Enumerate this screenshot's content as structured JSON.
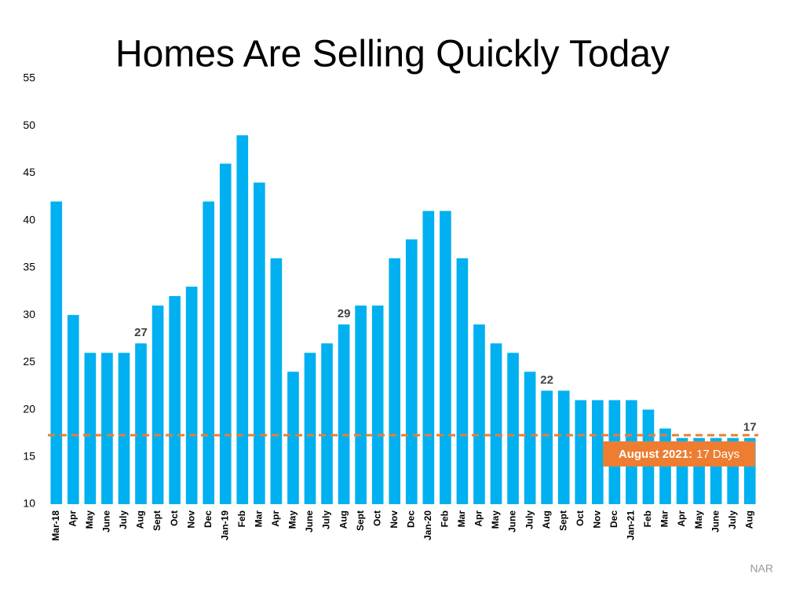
{
  "chart_data": {
    "type": "bar",
    "title": "Homes Are Selling Quickly Today",
    "categories": [
      "Mar-18",
      "Apr",
      "May",
      "June",
      "July",
      "Aug",
      "Sept",
      "Oct",
      "Nov",
      "Dec",
      "Jan-19",
      "Feb",
      "Mar",
      "Apr",
      "May",
      "June",
      "July",
      "Aug",
      "Sept",
      "Oct",
      "Nov",
      "Dec",
      "Jan-20",
      "Feb",
      "Mar",
      "Apr",
      "May",
      "June",
      "July",
      "Aug",
      "Sept",
      "Oct",
      "Nov",
      "Dec",
      "Jan-21",
      "Feb",
      "Mar",
      "Apr",
      "May",
      "June",
      "July",
      "Aug"
    ],
    "values": [
      42,
      30,
      26,
      26,
      26,
      27,
      31,
      32,
      33,
      42,
      46,
      49,
      44,
      36,
      24,
      26,
      27,
      29,
      31,
      31,
      36,
      38,
      41,
      41,
      36,
      29,
      27,
      26,
      24,
      22,
      22,
      21,
      21,
      21,
      21,
      20,
      18,
      17,
      17,
      17,
      17,
      17
    ],
    "value_labels": [
      null,
      null,
      null,
      null,
      null,
      "27",
      null,
      null,
      null,
      null,
      null,
      null,
      null,
      null,
      null,
      null,
      null,
      "29",
      null,
      null,
      null,
      null,
      null,
      null,
      null,
      null,
      null,
      null,
      null,
      "22",
      null,
      null,
      null,
      null,
      null,
      null,
      null,
      null,
      null,
      null,
      null,
      "17"
    ],
    "color": "#00b0f0",
    "ylim": [
      10,
      55
    ],
    "yticks": [
      10,
      15,
      20,
      25,
      30,
      35,
      40,
      45,
      50,
      55
    ],
    "grid": false,
    "reference_line": {
      "value": 17.3,
      "color": "#ed7d31"
    },
    "annotation": {
      "label": "August 2021:",
      "text": "17 Days",
      "color": "#ed7d31"
    },
    "source": "NAR"
  }
}
